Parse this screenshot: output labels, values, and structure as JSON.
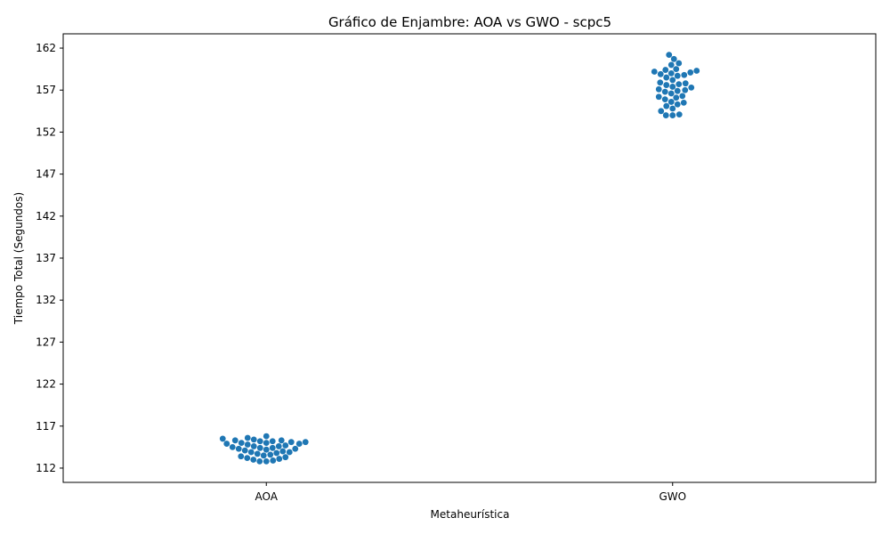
{
  "chart_data": {
    "type": "scatter",
    "title": "Gráfico de Enjambre: AOA vs GWO - scpc5",
    "xlabel": "Metaheurística",
    "ylabel": "Tiempo Total (Segundos)",
    "categories": [
      "AOA",
      "GWO"
    ],
    "ylim": [
      110.3,
      163.7
    ],
    "yticks": [
      112,
      117,
      122,
      127,
      132,
      137,
      142,
      147,
      152,
      157,
      162
    ],
    "grid": false,
    "legend": "none",
    "color": "#1f77b4",
    "series": [
      {
        "category": "AOA",
        "values": [
          112.8,
          112.8,
          112.9,
          113.0,
          113.1,
          113.2,
          113.3,
          113.4,
          113.5,
          113.6,
          113.7,
          113.8,
          113.9,
          113.9,
          114.0,
          114.1,
          114.2,
          114.3,
          114.3,
          114.4,
          114.4,
          114.5,
          114.6,
          114.6,
          114.7,
          114.8,
          114.9,
          114.9,
          115.0,
          115.0,
          115.1,
          115.1,
          115.2,
          115.2,
          115.3,
          115.3,
          115.4,
          115.5,
          115.6,
          115.8
        ]
      },
      {
        "category": "GWO",
        "values": [
          154.0,
          154.0,
          154.1,
          154.5,
          154.8,
          155.1,
          155.3,
          155.5,
          155.6,
          155.9,
          156.1,
          156.2,
          156.3,
          156.6,
          156.8,
          156.9,
          157.0,
          157.1,
          157.3,
          157.4,
          157.6,
          157.7,
          157.8,
          157.9,
          158.2,
          158.5,
          158.7,
          158.8,
          158.9,
          159.0,
          159.1,
          159.2,
          159.3,
          159.4,
          159.5,
          160.0,
          160.2,
          160.7,
          161.2
        ]
      }
    ]
  }
}
